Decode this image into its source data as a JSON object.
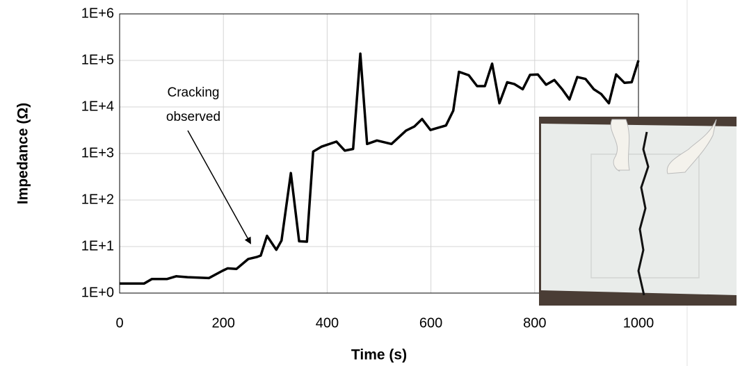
{
  "chart_data": {
    "type": "line",
    "x_label": "Time (s)",
    "y_label": "Impedance (Ω)",
    "annotation": [
      "Cracking",
      "observed"
    ],
    "log_y": true,
    "grid": true,
    "xlim": [
      0,
      1000
    ],
    "xticks": [
      0,
      200,
      400,
      600,
      800,
      1000
    ],
    "ylim": [
      1,
      1000000
    ],
    "yticks": [
      {
        "value": 1,
        "label": "1E+0"
      },
      {
        "value": 10,
        "label": "1E+1"
      },
      {
        "value": 100,
        "label": "1E+2"
      },
      {
        "value": 1000,
        "label": "1E+3"
      },
      {
        "value": 10000,
        "label": "1E+4"
      },
      {
        "value": 100000,
        "label": "1E+5"
      },
      {
        "value": 1000000,
        "label": "1E+6"
      }
    ],
    "x": [
      0,
      47,
      62,
      91,
      109,
      131,
      172,
      198,
      208,
      225,
      248,
      265,
      272,
      284,
      302,
      312,
      330,
      346,
      361,
      373,
      389,
      418,
      434,
      450,
      464,
      477,
      496,
      524,
      552,
      568,
      583,
      599,
      629,
      643,
      654,
      673,
      689,
      704,
      718,
      732,
      747,
      761,
      777,
      791,
      806,
      822,
      838,
      853,
      867,
      882,
      898,
      914,
      928,
      943,
      957,
      973,
      987,
      1000
    ],
    "series": [
      {
        "color": "#000000",
        "values": [
          1.6,
          1.6,
          2.0,
          2.0,
          2.3,
          2.2,
          2.1,
          3.0,
          3.4,
          3.3,
          5.4,
          6.0,
          6.4,
          17,
          8.5,
          13.5,
          380,
          13,
          12.7,
          1100,
          1400,
          1800,
          1150,
          1250,
          140000,
          1600,
          1900,
          1600,
          3100,
          3800,
          5500,
          3200,
          4000,
          8300,
          57000,
          48000,
          28000,
          28000,
          85000,
          12000,
          34000,
          31000,
          24000,
          49000,
          50000,
          30000,
          38000,
          24000,
          14500,
          44000,
          40000,
          24000,
          19000,
          12000,
          50000,
          33000,
          34000,
          100000
        ]
      }
    ]
  }
}
